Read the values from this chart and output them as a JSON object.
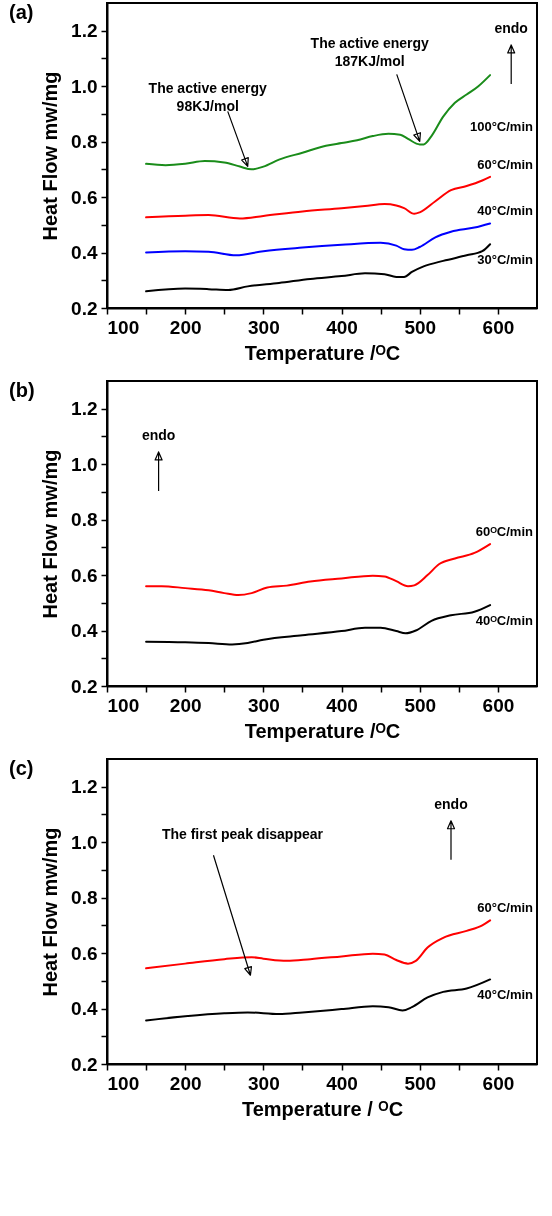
{
  "chart_data": [
    {
      "type": "line",
      "title": "(a)",
      "xlabel": "Temperature /ᴼC",
      "ylabel": "Heat Flow mw/mg",
      "xlim": [
        100,
        650
      ],
      "xticks": [
        100,
        {
          "value": 150,
          "label": null
        },
        200,
        {
          "value": 250,
          "label": null
        },
        300,
        {
          "value": 350,
          "label": null
        },
        400,
        {
          "value": 450,
          "label": null
        },
        500,
        {
          "value": 550,
          "label": null
        },
        600
      ],
      "ylim": [
        0.2,
        1.3
      ],
      "yticks": [
        0.2,
        {
          "value": 0.3,
          "label": null
        },
        0.4,
        {
          "value": 0.5,
          "label": null
        },
        0.6,
        {
          "value": 0.7,
          "label": null
        },
        0.8,
        {
          "value": 0.9,
          "label": null
        },
        {
          "value": 1.0,
          "label": "1.0"
        },
        {
          "value": 1.1,
          "label": null
        },
        1.2
      ],
      "annotations": [
        {
          "text": "The active energy\n98KJ/mol",
          "x": 280,
          "y": 0.7
        },
        {
          "text": "The active energy\n187KJ/mol",
          "x": 500,
          "y": 0.79
        },
        "endo"
      ],
      "series": [
        {
          "name": "100°C/min",
          "color": "#1a8c1a",
          "x": [
            150,
            175,
            200,
            225,
            250,
            270,
            285,
            300,
            320,
            350,
            380,
            400,
            420,
            440,
            460,
            475,
            485,
            500,
            505,
            515,
            530,
            545,
            560,
            575,
            590
          ],
          "values": [
            0.72,
            0.715,
            0.72,
            0.73,
            0.725,
            0.71,
            0.7,
            0.71,
            0.735,
            0.76,
            0.785,
            0.795,
            0.805,
            0.82,
            0.828,
            0.825,
            0.81,
            0.79,
            0.79,
            0.82,
            0.89,
            0.94,
            0.97,
            1.0,
            1.04
          ]
        },
        {
          "name": "60°C/min",
          "color": "#ff0000",
          "x": [
            150,
            200,
            230,
            270,
            300,
            350,
            400,
            430,
            455,
            470,
            480,
            493,
            500,
            520,
            540,
            560,
            580,
            590
          ],
          "values": [
            0.527,
            0.533,
            0.535,
            0.523,
            0.532,
            0.548,
            0.56,
            0.568,
            0.575,
            0.57,
            0.56,
            0.54,
            0.545,
            0.585,
            0.625,
            0.64,
            0.66,
            0.673
          ]
        },
        {
          "name": "40°C/min",
          "color": "#0000ff",
          "x": [
            150,
            200,
            230,
            265,
            300,
            350,
            400,
            450,
            470,
            480,
            490,
            500,
            520,
            540,
            570,
            590
          ],
          "values": [
            0.4,
            0.405,
            0.403,
            0.39,
            0.405,
            0.418,
            0.428,
            0.435,
            0.425,
            0.412,
            0.41,
            0.42,
            0.455,
            0.475,
            0.49,
            0.505
          ]
        },
        {
          "name": "30°C/min",
          "color": "#000000",
          "x": [
            150,
            200,
            230,
            255,
            280,
            320,
            360,
            400,
            430,
            455,
            470,
            480,
            490,
            505,
            530,
            560,
            580,
            590
          ],
          "values": [
            0.26,
            0.27,
            0.268,
            0.265,
            0.278,
            0.29,
            0.305,
            0.315,
            0.325,
            0.322,
            0.312,
            0.312,
            0.33,
            0.35,
            0.37,
            0.39,
            0.405,
            0.43
          ]
        }
      ]
    },
    {
      "type": "line",
      "title": "(b)",
      "xlabel": "Temperature /ᴼC",
      "ylabel": "Heat Flow mw/mg",
      "xlim": [
        100,
        650
      ],
      "xticks": [
        100,
        {
          "value": 150,
          "label": null
        },
        200,
        {
          "value": 250,
          "label": null
        },
        300,
        {
          "value": 350,
          "label": null
        },
        400,
        {
          "value": 450,
          "label": null
        },
        500,
        {
          "value": 550,
          "label": null
        },
        600
      ],
      "ylim": [
        0.2,
        1.3
      ],
      "yticks": [
        0.2,
        {
          "value": 0.3,
          "label": null
        },
        0.4,
        {
          "value": 0.5,
          "label": null
        },
        0.6,
        {
          "value": 0.7,
          "label": null
        },
        0.8,
        {
          "value": 0.9,
          "label": null
        },
        {
          "value": 1.0,
          "label": "1.0"
        },
        {
          "value": 1.1,
          "label": null
        },
        1.2
      ],
      "annotations": [
        "endo"
      ],
      "series": [
        {
          "name": "60ᴼC/min",
          "color": "#ff0000",
          "x": [
            150,
            170,
            200,
            230,
            250,
            268,
            285,
            305,
            330,
            360,
            400,
            440,
            455,
            470,
            485,
            493,
            510,
            525,
            545,
            570,
            590
          ],
          "values": [
            0.56,
            0.56,
            0.553,
            0.545,
            0.535,
            0.528,
            0.535,
            0.555,
            0.562,
            0.577,
            0.588,
            0.598,
            0.595,
            0.578,
            0.56,
            0.563,
            0.6,
            0.64,
            0.66,
            0.68,
            0.712
          ]
        },
        {
          "name": "40ᴼC/min",
          "color": "#000000",
          "x": [
            150,
            200,
            230,
            260,
            280,
            300,
            350,
            400,
            430,
            450,
            470,
            482,
            495,
            515,
            540,
            570,
            590
          ],
          "values": [
            0.36,
            0.358,
            0.355,
            0.35,
            0.355,
            0.367,
            0.383,
            0.398,
            0.41,
            0.41,
            0.398,
            0.39,
            0.4,
            0.435,
            0.455,
            0.468,
            0.492
          ]
        }
      ]
    },
    {
      "type": "line",
      "title": "(c)",
      "xlabel": "Temperature / ᴼC",
      "ylabel": "Heat Flow mw/mg",
      "xlim": [
        100,
        650
      ],
      "xticks": [
        100,
        {
          "value": 150,
          "label": null
        },
        200,
        {
          "value": 250,
          "label": null
        },
        300,
        {
          "value": 350,
          "label": null
        },
        400,
        {
          "value": 450,
          "label": null
        },
        500,
        {
          "value": 550,
          "label": null
        },
        600
      ],
      "ylim": [
        0.2,
        1.3
      ],
      "yticks": [
        0.2,
        {
          "value": 0.3,
          "label": null
        },
        0.4,
        {
          "value": 0.5,
          "label": null
        },
        0.6,
        {
          "value": 0.7,
          "label": null
        },
        0.8,
        {
          "value": 0.9,
          "label": null
        },
        {
          "value": 1.0,
          "label": "1.0"
        },
        {
          "value": 1.1,
          "label": null
        },
        1.2
      ],
      "annotations": [
        "The first peak disappear",
        "endo"
      ],
      "series": [
        {
          "name": "60°C/min",
          "color": "#ff0000",
          "x": [
            150,
            200,
            250,
            285,
            300,
            330,
            360,
            400,
            440,
            455,
            470,
            485,
            495,
            510,
            530,
            560,
            580,
            590
          ],
          "values": [
            0.545,
            0.562,
            0.578,
            0.585,
            0.58,
            0.572,
            0.578,
            0.588,
            0.598,
            0.595,
            0.575,
            0.562,
            0.572,
            0.62,
            0.655,
            0.68,
            0.7,
            0.718
          ]
        },
        {
          "name": "40°C/min",
          "color": "#000000",
          "x": [
            150,
            200,
            250,
            280,
            320,
            350,
            400,
            440,
            460,
            478,
            490,
            510,
            530,
            560,
            590
          ],
          "values": [
            0.357,
            0.372,
            0.383,
            0.386,
            0.38,
            0.386,
            0.398,
            0.408,
            0.405,
            0.393,
            0.405,
            0.44,
            0.46,
            0.472,
            0.505
          ]
        }
      ]
    }
  ]
}
